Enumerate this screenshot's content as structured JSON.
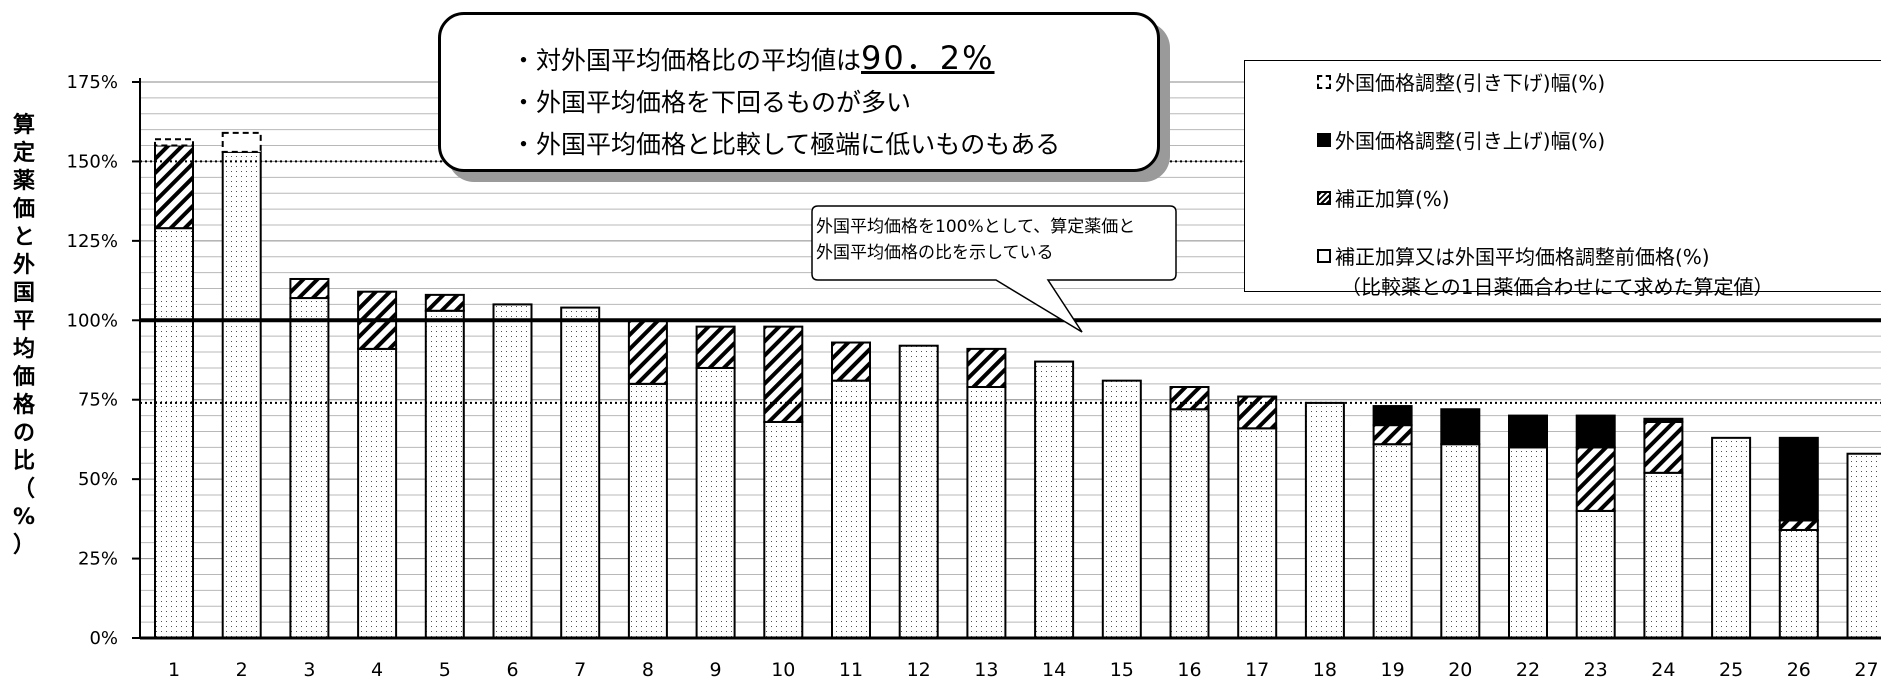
{
  "chart_data": {
    "type": "bar",
    "stacked": true,
    "ylabel": "算定薬価と外国平均価格の比（%）",
    "ylim": [
      0,
      175
    ],
    "yticks": [
      "0%",
      "25%",
      "50%",
      "75%",
      "100%",
      "125%",
      "150%",
      "175%"
    ],
    "grid": true,
    "legend_placement": "top-right",
    "categories": [
      "1",
      "2",
      "3",
      "4",
      "5",
      "6",
      "7",
      "8",
      "9",
      "10",
      "11",
      "12",
      "13",
      "14",
      "15",
      "16",
      "17",
      "18",
      "19",
      "20",
      "22",
      "23",
      "24",
      "25",
      "26",
      "27"
    ],
    "series": [
      {
        "name": "補正加算又は外国平均価格調整前価格（%）",
        "pattern": "dotted",
        "values": [
          129,
          153,
          107,
          91,
          103,
          105,
          104,
          80,
          85,
          68,
          81,
          92,
          79,
          87,
          81,
          72,
          66,
          74,
          61,
          61,
          60,
          40,
          52,
          63,
          34,
          58
        ]
      },
      {
        "name": "補正加算（%）",
        "pattern": "hatched",
        "values": [
          26,
          0,
          6,
          18,
          5,
          0,
          0,
          20,
          13,
          30,
          12,
          0,
          12,
          0,
          0,
          7,
          10,
          0,
          6,
          0,
          0,
          20,
          16,
          0,
          3,
          0
        ]
      },
      {
        "name": "外国価格調整（引き上げ）幅（%）",
        "pattern": "solid",
        "values": [
          0,
          0,
          0,
          0,
          0,
          0,
          0,
          0,
          0,
          0,
          0,
          0,
          0,
          0,
          0,
          0,
          0,
          0,
          6,
          11,
          10,
          10,
          1,
          0,
          26,
          0
        ]
      },
      {
        "name": "外国価格調整（引き下げ）幅（%）",
        "pattern": "dashed",
        "values": [
          2,
          6,
          0,
          0,
          0,
          0,
          0,
          0,
          0,
          0,
          0,
          0,
          0,
          0,
          0,
          0,
          0,
          0,
          0,
          0,
          0,
          0,
          0,
          0,
          0,
          0
        ]
      }
    ],
    "reference_lines": [
      {
        "label": "100%",
        "value": 100,
        "style": "solid"
      },
      {
        "label": "150%",
        "value": 150,
        "style": "dotted"
      },
      {
        "label": "74%",
        "value": 74,
        "style": "dotted"
      }
    ],
    "annotation": {
      "lines": [
        "・対外国平均価格比の平均値は",
        "・外国平均価格を下回るものが多い",
        "・外国平均価格と比較して極端に低いものもある"
      ],
      "highlight": "90．2%"
    },
    "speech_bubble": [
      "外国平均価格を100%として、算定薬価と",
      "外国平均価格の比を示している"
    ],
    "legend": {
      "items": [
        "外国価格調整(引き下げ)幅(%)",
        "外国価格調整(引き上げ)幅(%)",
        "補正加算(%)",
        "補正加算又は外国平均価格調整前価格(%)"
      ],
      "note": "（比較薬との1日薬価合わせにて求めた算定値）"
    }
  }
}
